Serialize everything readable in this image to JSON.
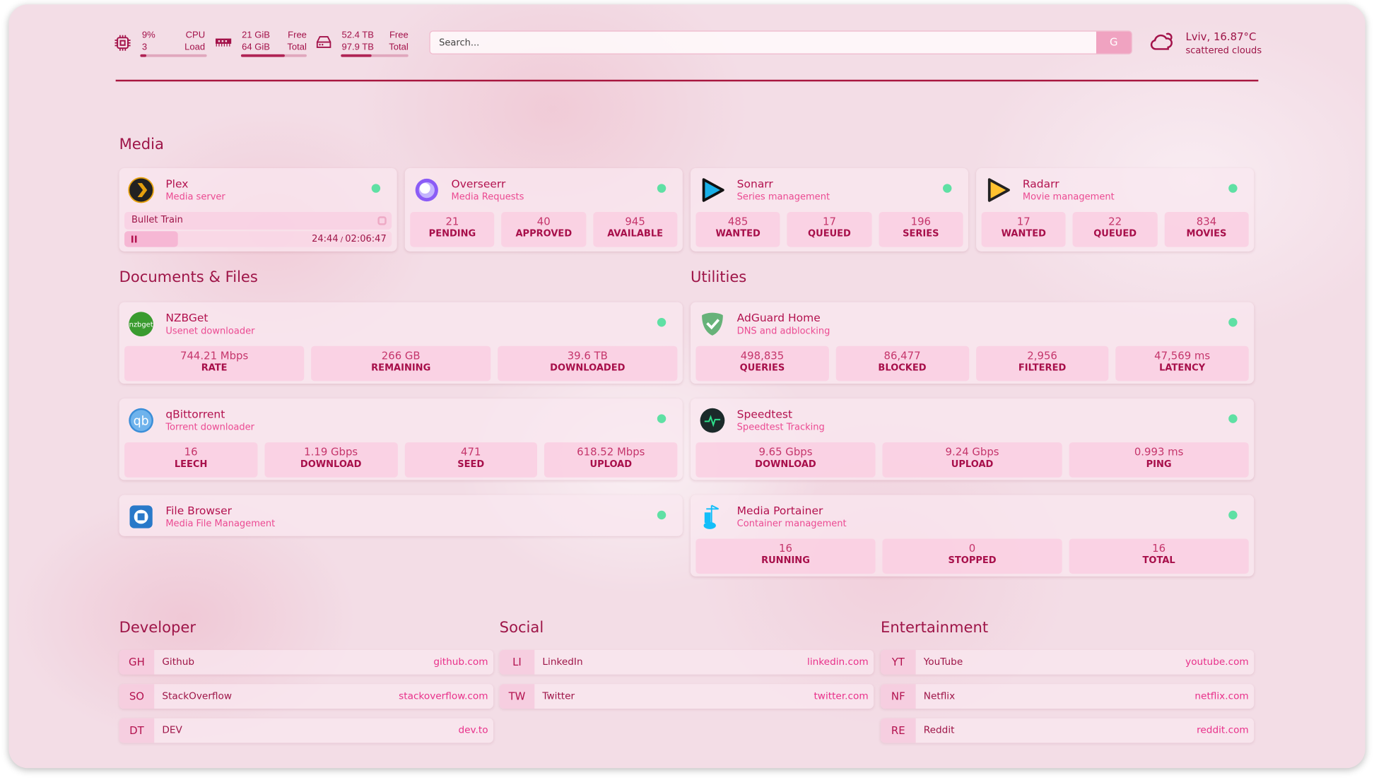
{
  "header": {
    "cpu": {
      "icon": "cpu-icon",
      "value": "9%",
      "cores": "3",
      "label1": "CPU",
      "label2": "Load",
      "percent": 9
    },
    "memory": {
      "icon": "memory-icon",
      "free": "21 GiB",
      "total": "64 GiB",
      "label1": "Free",
      "label2": "Total",
      "percent": 67
    },
    "disk": {
      "icon": "disk-icon",
      "free": "52.4 TB",
      "total": "97.9 TB",
      "label1": "Free",
      "label2": "Total",
      "percent": 46
    },
    "search": {
      "placeholder": "Search...",
      "button": "G"
    },
    "weather": {
      "icon": "cloud-sun-icon",
      "location": "Lviv, 16.87°C",
      "condition": "scattered clouds"
    }
  },
  "colors": {
    "accent": "#b3124f",
    "status_ok": "#5fe0a4",
    "divider": "#a8173f"
  },
  "media": {
    "title": "Media",
    "plex": {
      "name": "Plex",
      "desc": "Media server",
      "icon": "plex-icon",
      "now_playing": "Bullet Train",
      "time": "24:44",
      "duration": "02:06:47",
      "progress": 0.2,
      "state": "paused"
    },
    "services": [
      {
        "name": "Overseerr",
        "desc": "Media Requests",
        "icon": "overseerr-icon",
        "stats": [
          {
            "v": "21",
            "l": "PENDING"
          },
          {
            "v": "40",
            "l": "APPROVED"
          },
          {
            "v": "945",
            "l": "AVAILABLE"
          }
        ]
      },
      {
        "name": "Sonarr",
        "desc": "Series management",
        "icon": "sonarr-icon",
        "stats": [
          {
            "v": "485",
            "l": "WANTED"
          },
          {
            "v": "17",
            "l": "QUEUED"
          },
          {
            "v": "196",
            "l": "SERIES"
          }
        ]
      },
      {
        "name": "Radarr",
        "desc": "Movie management",
        "icon": "radarr-icon",
        "stats": [
          {
            "v": "17",
            "l": "WANTED"
          },
          {
            "v": "22",
            "l": "QUEUED"
          },
          {
            "v": "834",
            "l": "MOVIES"
          }
        ]
      }
    ]
  },
  "documents": {
    "title": "Documents & Files",
    "services": [
      {
        "name": "NZBGet",
        "desc": "Usenet downloader",
        "icon": "nzbget-icon",
        "icon_text": "nzbget",
        "stats": [
          {
            "v": "744.21 Mbps",
            "l": "RATE"
          },
          {
            "v": "266 GB",
            "l": "REMAINING"
          },
          {
            "v": "39.6 TB",
            "l": "DOWNLOADED"
          }
        ]
      },
      {
        "name": "qBittorrent",
        "desc": "Torrent downloader",
        "icon": "qbittorrent-icon",
        "icon_text": "qb",
        "stats": [
          {
            "v": "16",
            "l": "LEECH"
          },
          {
            "v": "1.19 Gbps",
            "l": "DOWNLOAD"
          },
          {
            "v": "471",
            "l": "SEED"
          },
          {
            "v": "618.52 Mbps",
            "l": "UPLOAD"
          }
        ]
      },
      {
        "name": "File Browser",
        "desc": "Media File Management",
        "icon": "filebrowser-icon",
        "stats": []
      }
    ]
  },
  "utilities": {
    "title": "Utilities",
    "services": [
      {
        "name": "AdGuard Home",
        "desc": "DNS and adblocking",
        "icon": "adguard-icon",
        "stats": [
          {
            "v": "498,835",
            "l": "QUERIES"
          },
          {
            "v": "86,477",
            "l": "BLOCKED"
          },
          {
            "v": "2,956",
            "l": "FILTERED"
          },
          {
            "v": "47,569 ms",
            "l": "LATENCY"
          }
        ]
      },
      {
        "name": "Speedtest",
        "desc": "Speedtest Tracking",
        "icon": "speedtest-icon",
        "stats": [
          {
            "v": "9.65 Gbps",
            "l": "DOWNLOAD"
          },
          {
            "v": "9.24 Gbps",
            "l": "UPLOAD"
          },
          {
            "v": "0.993 ms",
            "l": "PING"
          }
        ]
      },
      {
        "name": "Media Portainer",
        "desc": "Container management",
        "icon": "portainer-icon",
        "stats": [
          {
            "v": "16",
            "l": "RUNNING"
          },
          {
            "v": "0",
            "l": "STOPPED"
          },
          {
            "v": "16",
            "l": "TOTAL"
          }
        ]
      }
    ]
  },
  "bookmarks": [
    {
      "title": "Developer",
      "items": [
        {
          "abbr": "GH",
          "name": "Github",
          "url": "github.com"
        },
        {
          "abbr": "SO",
          "name": "StackOverflow",
          "url": "stackoverflow.com"
        },
        {
          "abbr": "DT",
          "name": "DEV",
          "url": "dev.to"
        }
      ]
    },
    {
      "title": "Social",
      "items": [
        {
          "abbr": "LI",
          "name": "LinkedIn",
          "url": "linkedin.com"
        },
        {
          "abbr": "TW",
          "name": "Twitter",
          "url": "twitter.com"
        }
      ]
    },
    {
      "title": "Entertainment",
      "items": [
        {
          "abbr": "YT",
          "name": "YouTube",
          "url": "youtube.com"
        },
        {
          "abbr": "NF",
          "name": "Netflix",
          "url": "netflix.com"
        },
        {
          "abbr": "RE",
          "name": "Reddit",
          "url": "reddit.com"
        }
      ]
    }
  ]
}
